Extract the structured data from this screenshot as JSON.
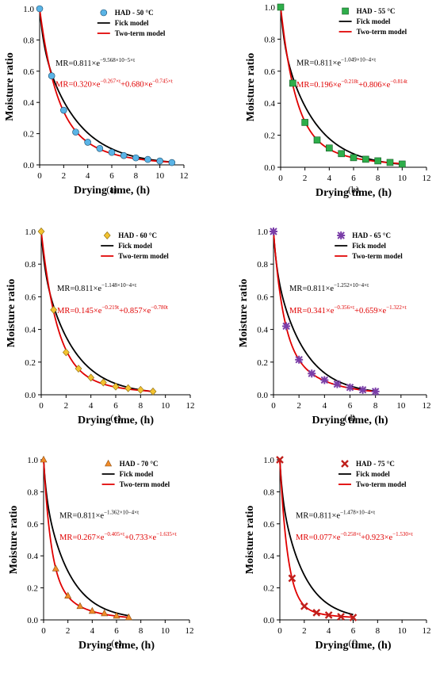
{
  "figure": {
    "common": {
      "xlabel": "Drying time, (h)",
      "ylabel": "Moisture ratio",
      "xlim": [
        0,
        12
      ],
      "ylim": [
        0,
        1.0
      ],
      "xticks": [
        "0",
        "2",
        "4",
        "6",
        "8",
        "10",
        "12"
      ],
      "yticks": [
        "0.0",
        "0.2",
        "0.4",
        "0.6",
        "0.8",
        "1.0"
      ],
      "fick_label": "Fick model",
      "twoterm_label": "Two-term model",
      "fick_color": "#000000",
      "twoterm_color": "#e00000"
    }
  },
  "chart_data": [
    {
      "type": "scatter",
      "caption": "(a)",
      "series_name": "HAD - 50 °C",
      "marker": "circle",
      "marker_color": "#5ab4e6",
      "x": [
        0,
        1,
        2,
        3,
        4,
        5,
        6,
        7,
        8,
        9,
        10,
        11
      ],
      "y": [
        1.0,
        0.57,
        0.35,
        0.21,
        0.145,
        0.105,
        0.08,
        0.06,
        0.045,
        0.035,
        0.025,
        0.015
      ],
      "fick": {
        "A": 0.811,
        "k": 0.3445,
        "tmax": 11
      },
      "twoterm": {
        "a": 0.32,
        "k1": 0.267,
        "b": 0.68,
        "k2": 0.745,
        "tmax": 11
      },
      "fick_eq": {
        "base": "MR=0.811×e",
        "exp": "−9.568×10−5×t",
        "tail": ""
      },
      "twoterm_eq": {
        "base": "MR=0.320×e",
        "exp": "−0.267×t",
        "mid": "+0.680×e",
        "exp2": "−0.745×t"
      }
    },
    {
      "type": "scatter",
      "caption": "(b)",
      "series_name": "HAD - 55 °C",
      "marker": "square",
      "marker_color": "#2eae4a",
      "x": [
        0,
        1,
        2,
        3,
        4,
        5,
        6,
        7,
        8,
        9,
        10
      ],
      "y": [
        1.0,
        0.525,
        0.28,
        0.17,
        0.12,
        0.085,
        0.06,
        0.05,
        0.04,
        0.03,
        0.02
      ],
      "fick": {
        "A": 0.811,
        "k": 0.3776,
        "tmax": 10
      },
      "twoterm": {
        "a": 0.196,
        "k1": 0.218,
        "b": 0.806,
        "k2": 0.814,
        "tmax": 10
      },
      "fick_eq": {
        "base": "MR=0.811×e",
        "exp": "−1.049×10−4×t",
        "tail": ""
      },
      "twoterm_eq": {
        "base": "MR=0.196×e",
        "exp": "−0.218t",
        "mid": "+0.806×e",
        "exp2": "−0.814t"
      }
    },
    {
      "type": "scatter",
      "caption": "(c)",
      "series_name": "HAD - 60 °C",
      "marker": "diamond",
      "marker_color": "#f2c230",
      "x": [
        0,
        1,
        2,
        3,
        4,
        5,
        6,
        7,
        8,
        9
      ],
      "y": [
        1.0,
        0.52,
        0.26,
        0.16,
        0.105,
        0.075,
        0.05,
        0.04,
        0.03,
        0.02
      ],
      "fick": {
        "A": 0.811,
        "k": 0.4133,
        "tmax": 9
      },
      "twoterm": {
        "a": 0.145,
        "k1": 0.219,
        "b": 0.857,
        "k2": 0.78,
        "tmax": 9
      },
      "fick_eq": {
        "base": "MR=0.811×e",
        "exp": "−1.148×10−4×t",
        "tail": ""
      },
      "twoterm_eq": {
        "base": "MR=0.145×e",
        "exp": "−0.219t",
        "mid": "+0.857×e",
        "exp2": "−0.780t"
      }
    },
    {
      "type": "scatter",
      "caption": "(d)",
      "series_name": "HAD - 65 °C",
      "marker": "star",
      "marker_color": "#7a3ea8",
      "x": [
        0,
        1,
        2,
        3,
        4,
        5,
        6,
        7,
        8
      ],
      "y": [
        1.0,
        0.42,
        0.215,
        0.13,
        0.09,
        0.065,
        0.045,
        0.03,
        0.02
      ],
      "fick": {
        "A": 0.811,
        "k": 0.4507,
        "tmax": 8
      },
      "twoterm": {
        "a": 0.341,
        "k1": 0.356,
        "b": 0.659,
        "k2": 1.322,
        "tmax": 8
      },
      "fick_eq": {
        "base": "MR=0.811×e",
        "exp": "−1.252×10−4×t",
        "tail": ""
      },
      "twoterm_eq": {
        "base": "MR=0.341×e",
        "exp": "−0.356×t",
        "mid": "+0.659×e",
        "exp2": "−1.322×t"
      }
    },
    {
      "type": "scatter",
      "caption": "(e)",
      "series_name": "HAD - 70 °C",
      "marker": "triangle",
      "marker_color": "#f28c28",
      "x": [
        0,
        1,
        2,
        3,
        4,
        5,
        6,
        7
      ],
      "y": [
        1.0,
        0.32,
        0.15,
        0.085,
        0.055,
        0.04,
        0.025,
        0.015
      ],
      "fick": {
        "A": 0.811,
        "k": 0.4903,
        "tmax": 7
      },
      "twoterm": {
        "a": 0.267,
        "k1": 0.405,
        "b": 0.733,
        "k2": 1.635,
        "tmax": 7
      },
      "fick_eq": {
        "base": "MR=0.811×e",
        "exp": "−1.362×10−4×t",
        "tail": ""
      },
      "twoterm_eq": {
        "base": "MR=0.267×e",
        "exp": "−0.405×t",
        "mid": "+0.733×e",
        "exp2": "−1.635×t"
      }
    },
    {
      "type": "scatter",
      "caption": "(f)",
      "series_name": "HAD - 75 °C",
      "marker": "x",
      "marker_color": "#c0201c",
      "x": [
        0,
        1,
        2,
        3,
        4,
        5,
        6
      ],
      "y": [
        1.0,
        0.26,
        0.085,
        0.045,
        0.03,
        0.02,
        0.015
      ],
      "fick": {
        "A": 0.811,
        "k": 0.5321,
        "tmax": 6
      },
      "twoterm": {
        "a": 0.077,
        "k1": 0.258,
        "b": 0.923,
        "k2": 1.53,
        "tmax": 6
      },
      "fick_eq": {
        "base": "MR=0.811×e",
        "exp": "−1.478×10−4×t",
        "tail": ""
      },
      "twoterm_eq": {
        "base": "MR=0.077×e",
        "exp": "−0.258×t",
        "mid": "+0.923×e",
        "exp2": "−1.530×t"
      }
    }
  ]
}
